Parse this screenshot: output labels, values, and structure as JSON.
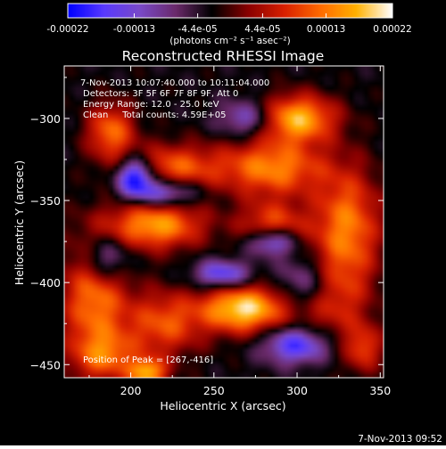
{
  "colorbar": {
    "tick_labels": [
      "-0.00022",
      "-0.00013",
      "-4.4e-05",
      "4.4e-05",
      "0.00013",
      "0.00022"
    ],
    "unit_label": "(photons cm⁻² s⁻¹ asec⁻²)",
    "range": [
      -0.00022,
      0.00022
    ]
  },
  "chart_data": {
    "type": "heatmap",
    "title": "Reconstructed RHESSI Image",
    "xlabel": "Heliocentric X (arcsec)",
    "ylabel": "Heliocentric Y (arcsec)",
    "xlim": [
      160,
      352
    ],
    "ylim": [
      -458,
      -268
    ],
    "x_ticks": [
      200,
      250,
      300,
      350
    ],
    "y_ticks": [
      -300,
      -350,
      -400,
      -450
    ],
    "colormap": [
      "#0000ff",
      "#5a3aff",
      "#7a4ac8",
      "#6a2a6a",
      "#000000",
      "#8a0000",
      "#d82000",
      "#ff6a00",
      "#ffb000",
      "#ffffff"
    ],
    "peak": [
      267,
      -416
    ],
    "annotations": [
      "7-Nov-2013 10:07:40.000 to 10:11:04.000",
      "Detectors: 3F 5F 6F 7F 8F 9F, Att 0",
      "Energy Range: 12.0 - 25.0 keV",
      "Clean     Total counts: 4.59E+05",
      "Position of Peak = [267,-416]"
    ],
    "sources": [
      {
        "x": 300,
        "y": -300,
        "v": 1.1,
        "sx": 16,
        "sy": 10
      },
      {
        "x": 285,
        "y": -330,
        "v": 0.9,
        "sx": 22,
        "sy": 12
      },
      {
        "x": 225,
        "y": -330,
        "v": 0.75,
        "sx": 20,
        "sy": 10
      },
      {
        "x": 188,
        "y": -308,
        "v": 0.8,
        "sx": 10,
        "sy": 12
      },
      {
        "x": 215,
        "y": -365,
        "v": 1.0,
        "sx": 20,
        "sy": 10
      },
      {
        "x": 330,
        "y": -365,
        "v": 0.85,
        "sx": 14,
        "sy": 24
      },
      {
        "x": 285,
        "y": -365,
        "v": 0.7,
        "sx": 14,
        "sy": 10
      },
      {
        "x": 268,
        "y": -416,
        "v": 1.25,
        "sx": 18,
        "sy": 10
      },
      {
        "x": 320,
        "y": -410,
        "v": 0.55,
        "sx": 16,
        "sy": 20
      },
      {
        "x": 178,
        "y": -410,
        "v": 0.85,
        "sx": 14,
        "sy": 26
      },
      {
        "x": 220,
        "y": -425,
        "v": 0.7,
        "sx": 16,
        "sy": 14
      },
      {
        "x": 185,
        "y": -445,
        "v": 0.6,
        "sx": 14,
        "sy": 10
      },
      {
        "x": 210,
        "y": -455,
        "v": 1.0,
        "sx": 8,
        "sy": 6
      },
      {
        "x": 340,
        "y": -440,
        "v": 0.6,
        "sx": 8,
        "sy": 10
      },
      {
        "x": 203,
        "y": -335,
        "v": -1.2,
        "sx": 8,
        "sy": 8
      },
      {
        "x": 285,
        "y": -375,
        "v": -0.9,
        "sx": 10,
        "sy": 6
      },
      {
        "x": 220,
        "y": -345,
        "v": -0.8,
        "sx": 14,
        "sy": 6
      },
      {
        "x": 255,
        "y": -395,
        "v": -0.8,
        "sx": 12,
        "sy": 6
      },
      {
        "x": 300,
        "y": -438,
        "v": -0.9,
        "sx": 14,
        "sy": 8
      },
      {
        "x": 305,
        "y": -400,
        "v": -0.6,
        "sx": 12,
        "sy": 12
      },
      {
        "x": 185,
        "y": -385,
        "v": -0.7,
        "sx": 10,
        "sy": 10
      },
      {
        "x": 270,
        "y": -300,
        "v": -0.6,
        "sx": 12,
        "sy": 8
      }
    ]
  },
  "timestamp": "7-Nov-2013 09:52"
}
